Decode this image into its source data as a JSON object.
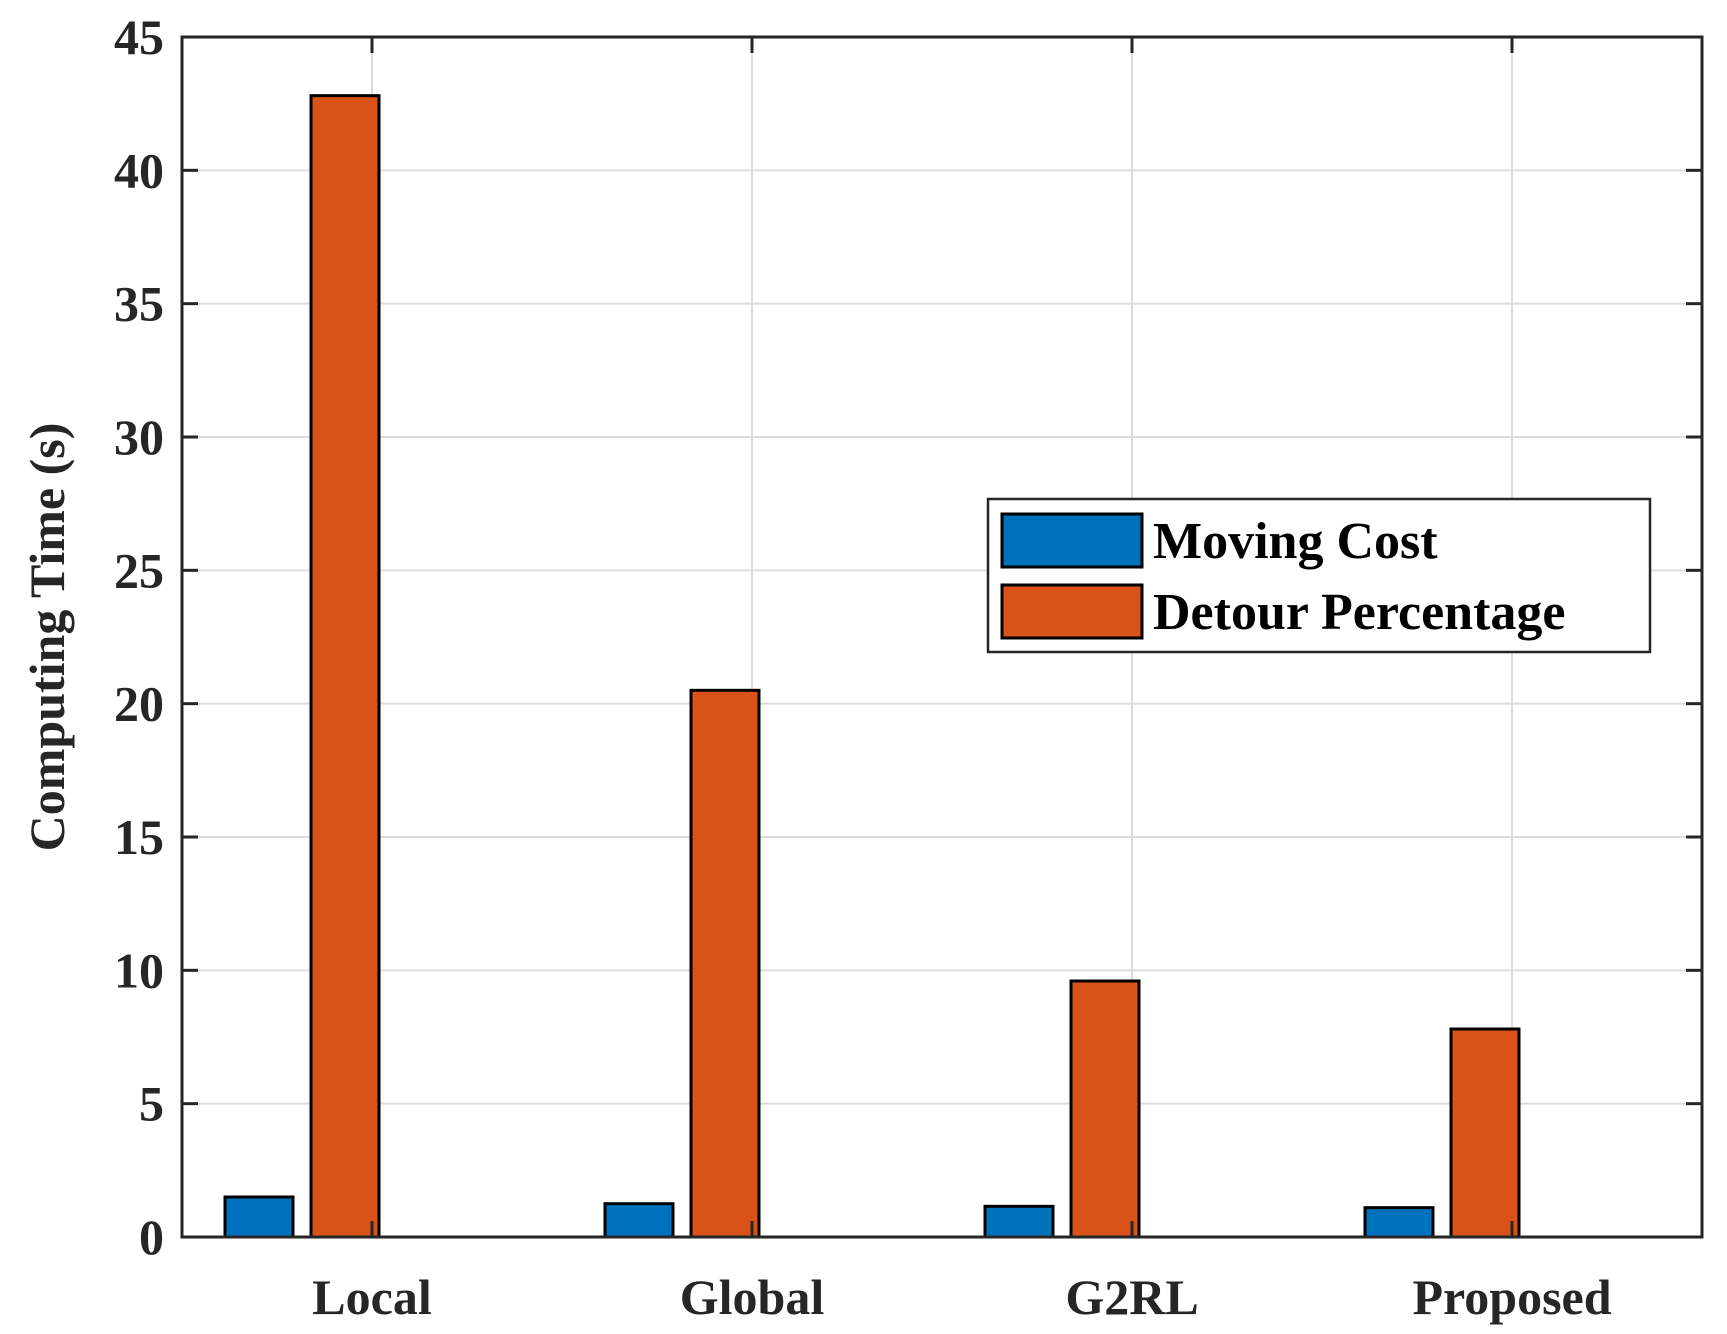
{
  "chart_data": {
    "type": "bar",
    "title": "",
    "xlabel": "",
    "ylabel": "Computing Time (s)",
    "ylim": [
      0,
      45
    ],
    "yticks": [
      0,
      5,
      10,
      15,
      20,
      25,
      30,
      35,
      40,
      45
    ],
    "grid": true,
    "legend_position": "right",
    "categories": [
      "Local",
      "Global",
      "G2RL",
      "Proposed"
    ],
    "series": [
      {
        "name": "Moving Cost",
        "color": "#0072BD",
        "values": [
          1.5,
          1.25,
          1.15,
          1.1
        ]
      },
      {
        "name": "Detour Percentage",
        "color": "#D95319",
        "values": [
          42.8,
          20.5,
          9.6,
          7.8
        ]
      }
    ]
  }
}
